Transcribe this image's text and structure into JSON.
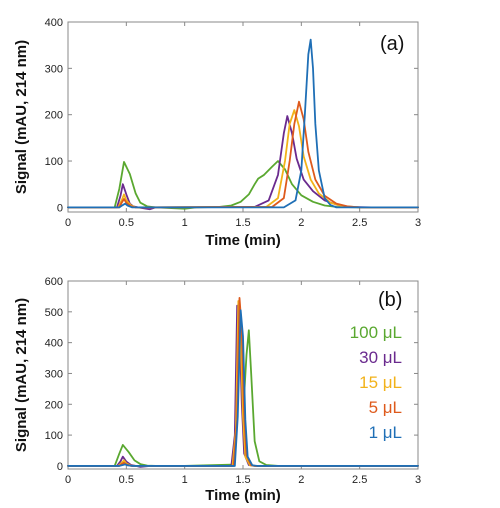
{
  "colors": {
    "green": "#5aa830",
    "purple": "#6a2a8e",
    "yellow": "#f2b21a",
    "orange": "#de5a1c",
    "blue": "#1f6fb6"
  },
  "chart_data": [
    {
      "type": "line",
      "panel_label": "(a)",
      "xlabel": "Time (min)",
      "ylabel": "Signal (mAU, 214 nm)",
      "xlim": [
        0,
        3
      ],
      "ylim": [
        -10,
        400
      ],
      "xticks": [
        0,
        0.5,
        1,
        1.5,
        2,
        2.5,
        3
      ],
      "yticks": [
        0,
        100,
        200,
        300,
        400
      ],
      "xtick_labels": [
        "0",
        "0.5",
        "1",
        "1.5",
        "2",
        "2.5",
        "3"
      ],
      "ytick_labels": [
        "0",
        "100",
        "200",
        "300",
        "400"
      ],
      "series": [
        {
          "color_key": "green",
          "points": [
            [
              0,
              0
            ],
            [
              0.4,
              0
            ],
            [
              0.44,
              40
            ],
            [
              0.48,
              98
            ],
            [
              0.53,
              72
            ],
            [
              0.58,
              30
            ],
            [
              0.62,
              10
            ],
            [
              0.68,
              2
            ],
            [
              0.75,
              0
            ],
            [
              1.0,
              -3
            ],
            [
              1.1,
              0
            ],
            [
              1.3,
              1
            ],
            [
              1.4,
              4
            ],
            [
              1.48,
              12
            ],
            [
              1.55,
              28
            ],
            [
              1.6,
              50
            ],
            [
              1.63,
              62
            ],
            [
              1.68,
              70
            ],
            [
              1.75,
              88
            ],
            [
              1.8,
              100
            ],
            [
              1.86,
              82
            ],
            [
              1.92,
              50
            ],
            [
              2.0,
              26
            ],
            [
              2.1,
              12
            ],
            [
              2.2,
              4
            ],
            [
              2.3,
              1
            ],
            [
              2.5,
              0
            ],
            [
              3,
              0
            ]
          ]
        },
        {
          "color_key": "purple",
          "points": [
            [
              0,
              0
            ],
            [
              0.42,
              0
            ],
            [
              0.45,
              25
            ],
            [
              0.47,
              50
            ],
            [
              0.5,
              28
            ],
            [
              0.53,
              8
            ],
            [
              0.56,
              2
            ],
            [
              0.6,
              0
            ],
            [
              0.7,
              -4
            ],
            [
              0.75,
              0
            ],
            [
              1.6,
              1
            ],
            [
              1.72,
              15
            ],
            [
              1.8,
              70
            ],
            [
              1.85,
              160
            ],
            [
              1.88,
              197
            ],
            [
              1.92,
              160
            ],
            [
              1.96,
              105
            ],
            [
              2.02,
              60
            ],
            [
              2.1,
              35
            ],
            [
              2.2,
              15
            ],
            [
              2.3,
              6
            ],
            [
              2.4,
              1
            ],
            [
              2.6,
              0
            ],
            [
              3,
              0
            ]
          ]
        },
        {
          "color_key": "yellow",
          "points": [
            [
              0,
              0
            ],
            [
              0.43,
              0
            ],
            [
              0.46,
              15
            ],
            [
              0.48,
              28
            ],
            [
              0.5,
              15
            ],
            [
              0.54,
              4
            ],
            [
              0.58,
              0
            ],
            [
              1.7,
              1
            ],
            [
              1.8,
              20
            ],
            [
              1.86,
              100
            ],
            [
              1.9,
              180
            ],
            [
              1.94,
              210
            ],
            [
              1.98,
              175
            ],
            [
              2.02,
              110
            ],
            [
              2.08,
              60
            ],
            [
              2.15,
              30
            ],
            [
              2.25,
              10
            ],
            [
              2.35,
              3
            ],
            [
              2.5,
              0
            ],
            [
              3,
              0
            ]
          ]
        },
        {
          "color_key": "orange",
          "points": [
            [
              0,
              0
            ],
            [
              0.44,
              0
            ],
            [
              0.46,
              10
            ],
            [
              0.48,
              18
            ],
            [
              0.5,
              10
            ],
            [
              0.54,
              2
            ],
            [
              0.58,
              0
            ],
            [
              1.75,
              1
            ],
            [
              1.85,
              20
            ],
            [
              1.9,
              100
            ],
            [
              1.94,
              180
            ],
            [
              1.98,
              228
            ],
            [
              2.02,
              190
            ],
            [
              2.06,
              120
            ],
            [
              2.12,
              60
            ],
            [
              2.2,
              25
            ],
            [
              2.3,
              8
            ],
            [
              2.4,
              2
            ],
            [
              2.5,
              0
            ],
            [
              3,
              0
            ]
          ]
        },
        {
          "color_key": "blue",
          "points": [
            [
              0,
              0
            ],
            [
              0.44,
              0
            ],
            [
              0.47,
              5
            ],
            [
              0.49,
              8
            ],
            [
              0.51,
              4
            ],
            [
              0.55,
              0
            ],
            [
              1.85,
              0
            ],
            [
              1.95,
              15
            ],
            [
              2.0,
              80
            ],
            [
              2.03,
              200
            ],
            [
              2.06,
              330
            ],
            [
              2.08,
              362
            ],
            [
              2.1,
              300
            ],
            [
              2.12,
              180
            ],
            [
              2.15,
              80
            ],
            [
              2.2,
              20
            ],
            [
              2.25,
              5
            ],
            [
              2.3,
              0
            ],
            [
              3,
              0
            ]
          ]
        }
      ]
    },
    {
      "type": "line",
      "panel_label": "(b)",
      "xlabel": "Time (min)",
      "ylabel": "Signal (mAU, 214 nm)",
      "xlim": [
        0,
        3
      ],
      "ylim": [
        -10,
        600
      ],
      "xticks": [
        0,
        0.5,
        1,
        1.5,
        2,
        2.5,
        3
      ],
      "yticks": [
        0,
        100,
        200,
        300,
        400,
        500,
        600
      ],
      "xtick_labels": [
        "0",
        "0.5",
        "1",
        "1.5",
        "2",
        "2.5",
        "3"
      ],
      "ytick_labels": [
        "0",
        "100",
        "200",
        "300",
        "400",
        "500",
        "600"
      ],
      "legend": [
        {
          "label": "100 μL",
          "color_key": "green"
        },
        {
          "label": "30 μL",
          "color_key": "purple"
        },
        {
          "label": "15 μL",
          "color_key": "yellow"
        },
        {
          "label": "5 μL",
          "color_key": "orange"
        },
        {
          "label": "1 μL",
          "color_key": "blue"
        }
      ],
      "series": [
        {
          "color_key": "green",
          "points": [
            [
              0,
              0
            ],
            [
              0.4,
              0
            ],
            [
              0.44,
              40
            ],
            [
              0.47,
              68
            ],
            [
              0.52,
              45
            ],
            [
              0.57,
              18
            ],
            [
              0.62,
              6
            ],
            [
              0.68,
              1
            ],
            [
              0.75,
              0
            ],
            [
              1.0,
              0
            ],
            [
              1.2,
              2
            ],
            [
              1.4,
              4
            ],
            [
              1.42,
              6
            ],
            [
              1.45,
              180
            ],
            [
              1.47,
              490
            ],
            [
              1.49,
              330
            ],
            [
              1.51,
              230
            ],
            [
              1.53,
              360
            ],
            [
              1.55,
              440
            ],
            [
              1.57,
              300
            ],
            [
              1.6,
              80
            ],
            [
              1.64,
              15
            ],
            [
              1.7,
              3
            ],
            [
              1.8,
              0
            ],
            [
              3,
              0
            ]
          ]
        },
        {
          "color_key": "purple",
          "points": [
            [
              0,
              0
            ],
            [
              0.42,
              0
            ],
            [
              0.45,
              15
            ],
            [
              0.47,
              30
            ],
            [
              0.5,
              14
            ],
            [
              0.54,
              3
            ],
            [
              0.58,
              0
            ],
            [
              0.62,
              -3
            ],
            [
              0.7,
              0
            ],
            [
              1.4,
              0
            ],
            [
              1.43,
              100
            ],
            [
              1.45,
              520
            ],
            [
              1.47,
              450
            ],
            [
              1.49,
              200
            ],
            [
              1.51,
              40
            ],
            [
              1.55,
              3
            ],
            [
              1.6,
              0
            ],
            [
              3,
              0
            ]
          ]
        },
        {
          "color_key": "yellow",
          "points": [
            [
              0,
              0
            ],
            [
              0.43,
              0
            ],
            [
              0.46,
              10
            ],
            [
              0.48,
              18
            ],
            [
              0.5,
              8
            ],
            [
              0.54,
              1
            ],
            [
              0.58,
              0
            ],
            [
              1.41,
              0
            ],
            [
              1.44,
              120
            ],
            [
              1.46,
              535
            ],
            [
              1.48,
              420
            ],
            [
              1.5,
              160
            ],
            [
              1.52,
              30
            ],
            [
              1.56,
              2
            ],
            [
              1.6,
              0
            ],
            [
              3,
              0
            ]
          ]
        },
        {
          "color_key": "orange",
          "points": [
            [
              0,
              0
            ],
            [
              0.44,
              0
            ],
            [
              0.46,
              6
            ],
            [
              0.48,
              10
            ],
            [
              0.5,
              5
            ],
            [
              0.54,
              0
            ],
            [
              1.42,
              0
            ],
            [
              1.45,
              150
            ],
            [
              1.47,
              545
            ],
            [
              1.49,
              440
            ],
            [
              1.51,
              170
            ],
            [
              1.53,
              35
            ],
            [
              1.57,
              2
            ],
            [
              1.6,
              0
            ],
            [
              3,
              0
            ]
          ]
        },
        {
          "color_key": "blue",
          "points": [
            [
              0,
              0
            ],
            [
              0.44,
              0
            ],
            [
              0.47,
              3
            ],
            [
              0.49,
              5
            ],
            [
              0.51,
              2
            ],
            [
              0.55,
              0
            ],
            [
              1.43,
              0
            ],
            [
              1.455,
              160
            ],
            [
              1.48,
              505
            ],
            [
              1.5,
              420
            ],
            [
              1.52,
              150
            ],
            [
              1.54,
              30
            ],
            [
              1.58,
              2
            ],
            [
              1.62,
              0
            ],
            [
              3,
              0
            ]
          ]
        }
      ]
    }
  ]
}
